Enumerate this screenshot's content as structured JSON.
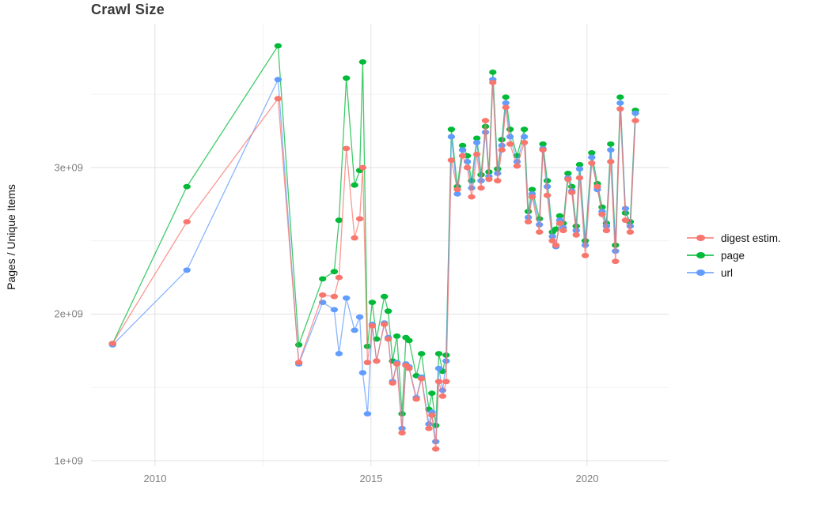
{
  "title": "Crawl Size",
  "y_axis_title": "Pages / Unique Items",
  "x_axis": {
    "ticks": [
      {
        "label": "2010",
        "value": 2010
      },
      {
        "label": "2015",
        "value": 2015
      },
      {
        "label": "2020",
        "value": 2020
      }
    ]
  },
  "y_axis": {
    "ticks": [
      {
        "label": "3e+09",
        "value_billions": 3
      },
      {
        "label": "2e+09",
        "value_billions": 2
      },
      {
        "label": "1e+09",
        "value_billions": 1
      }
    ]
  },
  "legend": {
    "position": "right",
    "items": [
      {
        "label": "digest estim.",
        "color": "#F8766D",
        "series": "digest"
      },
      {
        "label": "page",
        "color": "#00BA38",
        "series": "page"
      },
      {
        "label": "url",
        "color": "#619CFF",
        "series": "url"
      }
    ]
  },
  "chart_data": {
    "type": "line",
    "title": "Crawl Size",
    "xlabel": "",
    "ylabel": "Pages / Unique Items",
    "x_unit": "year (decimal, one point per crawl)",
    "y_unit": "count (billions, 1e9)",
    "xlim": [
      2008.52,
      2021.89
    ],
    "ylim_billions": [
      0.962,
      3.981
    ],
    "grid": "on",
    "legend_position": "right",
    "x": [
      2009.02,
      2010.74,
      2012.85,
      2013.33,
      2013.88,
      2014.15,
      2014.26,
      2014.43,
      2014.62,
      2014.74,
      2014.81,
      2014.92,
      2015.03,
      2015.13,
      2015.31,
      2015.4,
      2015.5,
      2015.6,
      2015.72,
      2015.81,
      2015.88,
      2016.05,
      2016.17,
      2016.34,
      2016.41,
      2016.5,
      2016.57,
      2016.66,
      2016.74,
      2016.86,
      2017.0,
      2017.12,
      2017.23,
      2017.33,
      2017.45,
      2017.55,
      2017.65,
      2017.73,
      2017.82,
      2017.93,
      2018.03,
      2018.12,
      2018.22,
      2018.38,
      2018.55,
      2018.64,
      2018.73,
      2018.9,
      2018.98,
      2019.08,
      2019.2,
      2019.28,
      2019.37,
      2019.45,
      2019.56,
      2019.65,
      2019.75,
      2019.83,
      2019.96,
      2020.11,
      2020.24,
      2020.35,
      2020.45,
      2020.55,
      2020.66,
      2020.77,
      2020.89,
      2021.0,
      2021.12
    ],
    "series": [
      {
        "name": "page",
        "color": "#00BA38",
        "values_billions": [
          1.8,
          2.87,
          3.83,
          1.79,
          2.24,
          2.29,
          2.64,
          3.61,
          2.88,
          2.98,
          3.72,
          1.78,
          2.08,
          1.83,
          2.12,
          2.02,
          1.68,
          1.85,
          1.32,
          1.84,
          1.82,
          1.58,
          1.73,
          1.35,
          1.46,
          1.24,
          1.73,
          1.61,
          1.72,
          3.26,
          2.87,
          3.15,
          3.08,
          2.91,
          3.2,
          2.95,
          3.28,
          2.97,
          3.65,
          2.99,
          3.19,
          3.48,
          3.26,
          3.08,
          3.26,
          2.7,
          2.85,
          2.65,
          3.16,
          2.91,
          2.56,
          2.58,
          2.67,
          2.62,
          2.96,
          2.87,
          2.6,
          3.02,
          2.5,
          3.1,
          2.89,
          2.73,
          2.62,
          3.16,
          2.47,
          3.48,
          2.69,
          2.63,
          3.39
        ]
      },
      {
        "name": "url",
        "color": "#619CFF",
        "values_billions": [
          1.79,
          2.3,
          3.6,
          1.66,
          2.08,
          2.03,
          1.73,
          2.11,
          1.89,
          1.98,
          1.6,
          1.32,
          1.93,
          1.68,
          1.94,
          1.84,
          1.54,
          1.67,
          1.22,
          1.66,
          1.64,
          1.43,
          1.57,
          1.25,
          1.33,
          1.13,
          1.63,
          1.48,
          1.68,
          3.21,
          2.82,
          3.12,
          3.04,
          2.86,
          3.17,
          2.91,
          3.24,
          2.94,
          3.6,
          2.96,
          3.15,
          3.44,
          3.21,
          3.04,
          3.21,
          2.66,
          2.82,
          2.61,
          3.13,
          2.87,
          2.53,
          2.46,
          2.64,
          2.59,
          2.93,
          2.84,
          2.57,
          2.99,
          2.47,
          3.07,
          2.85,
          2.7,
          2.6,
          3.12,
          2.43,
          3.44,
          2.72,
          2.6,
          3.37
        ]
      },
      {
        "name": "digest estim.",
        "color": "#F8766D",
        "values_billions": [
          1.8,
          2.63,
          3.47,
          1.67,
          2.13,
          2.12,
          2.25,
          3.13,
          2.52,
          2.65,
          3.0,
          1.67,
          1.92,
          1.68,
          1.93,
          1.83,
          1.53,
          1.66,
          1.19,
          1.65,
          1.63,
          1.42,
          1.56,
          1.22,
          1.31,
          1.08,
          1.54,
          1.44,
          1.54,
          3.05,
          2.85,
          3.08,
          3.0,
          2.8,
          3.09,
          2.86,
          3.32,
          2.92,
          3.58,
          2.91,
          3.12,
          3.41,
          3.16,
          3.01,
          3.17,
          2.63,
          2.8,
          2.56,
          3.12,
          2.81,
          2.5,
          2.47,
          2.62,
          2.57,
          2.92,
          2.83,
          2.54,
          2.93,
          2.4,
          3.03,
          2.87,
          2.68,
          2.57,
          3.04,
          2.36,
          3.4,
          2.64,
          2.56,
          3.32
        ]
      }
    ]
  }
}
